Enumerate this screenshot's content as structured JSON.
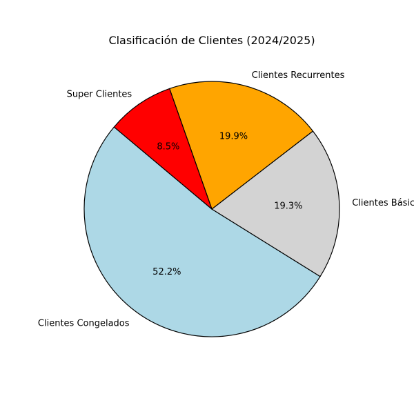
{
  "chart_data": {
    "type": "pie",
    "title": "Clasificación de Clientes (2024/2025)",
    "start_angle_deg": 140,
    "direction": "counterclockwise",
    "slices": [
      {
        "label": "Clientes Congelados",
        "value": 52.2,
        "pct_text": "52.2%",
        "color": "#add8e6"
      },
      {
        "label": "Clientes Básicos",
        "value": 19.3,
        "pct_text": "19.3%",
        "color": "#d3d3d3"
      },
      {
        "label": "Clientes Recurrentes",
        "value": 19.9,
        "pct_text": "19.9%",
        "color": "#ffa500"
      },
      {
        "label": "Super Clientes",
        "value": 8.5,
        "pct_text": "8.5%",
        "color": "#ff0000"
      }
    ],
    "edge_color": "#000000",
    "legend": "none"
  }
}
